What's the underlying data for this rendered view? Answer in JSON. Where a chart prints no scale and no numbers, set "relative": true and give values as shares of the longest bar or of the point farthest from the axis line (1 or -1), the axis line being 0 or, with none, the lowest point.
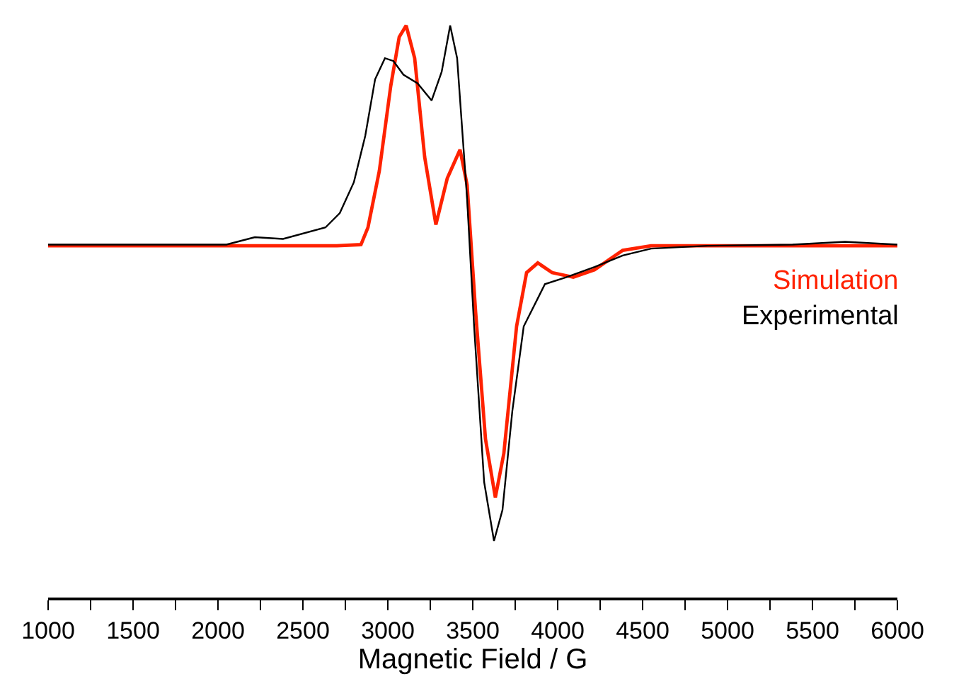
{
  "chart_data": {
    "type": "line",
    "xlabel": "Magnetic Field / G",
    "relative": true,
    "xlim": [
      1000,
      6000
    ],
    "xticks": [
      1000,
      {
        "value": 1250,
        "label": null
      },
      1500,
      {
        "value": 1750,
        "label": null
      },
      2000,
      {
        "value": 2250,
        "label": null
      },
      2500,
      {
        "value": 2750,
        "label": null
      },
      3000,
      {
        "value": 3250,
        "label": null
      },
      3500,
      {
        "value": 3750,
        "label": null
      },
      4000,
      {
        "value": 4250,
        "label": null
      },
      4500,
      {
        "value": 4750,
        "label": null
      },
      5000,
      {
        "value": 5250,
        "label": null
      },
      5500,
      {
        "value": 5750,
        "label": null
      },
      6000
    ],
    "marker": "none",
    "line_style": "solid",
    "series": [
      {
        "name": "Simulation",
        "color": "#ff2200",
        "x": [
          1000,
          2000,
          2700,
          2842,
          2883,
          2950,
          3017,
          3067,
          3108,
          3158,
          3217,
          3283,
          3350,
          3425,
          3467,
          3517,
          3575,
          3633,
          3683,
          3758,
          3817,
          3883,
          3967,
          4092,
          4217,
          4383,
          4550,
          5000,
          6000
        ],
        "values": [
          0.615,
          0.615,
          0.615,
          0.617,
          0.647,
          0.746,
          0.894,
          0.98,
          1.0,
          0.943,
          0.77,
          0.652,
          0.733,
          0.783,
          0.721,
          0.499,
          0.277,
          0.175,
          0.252,
          0.474,
          0.568,
          0.585,
          0.568,
          0.56,
          0.573,
          0.607,
          0.615,
          0.615,
          0.615
        ]
      },
      {
        "name": "Experimental",
        "color": "#000000",
        "x": [
          1000,
          1500,
          2050,
          2217,
          2383,
          2633,
          2717,
          2800,
          2867,
          2925,
          2983,
          3033,
          3092,
          3175,
          3258,
          3317,
          3367,
          3408,
          3467,
          3508,
          3567,
          3625,
          3675,
          3733,
          3800,
          3925,
          4050,
          4217,
          4383,
          4550,
          4883,
          5383,
          5692,
          6000
        ],
        "values": [
          0.617,
          0.617,
          0.617,
          0.63,
          0.627,
          0.647,
          0.672,
          0.726,
          0.807,
          0.906,
          0.943,
          0.938,
          0.914,
          0.899,
          0.869,
          0.919,
          1.0,
          0.943,
          0.696,
          0.474,
          0.202,
          0.099,
          0.153,
          0.326,
          0.474,
          0.548,
          0.56,
          0.578,
          0.598,
          0.61,
          0.615,
          0.617,
          0.622,
          0.617
        ]
      }
    ]
  }
}
